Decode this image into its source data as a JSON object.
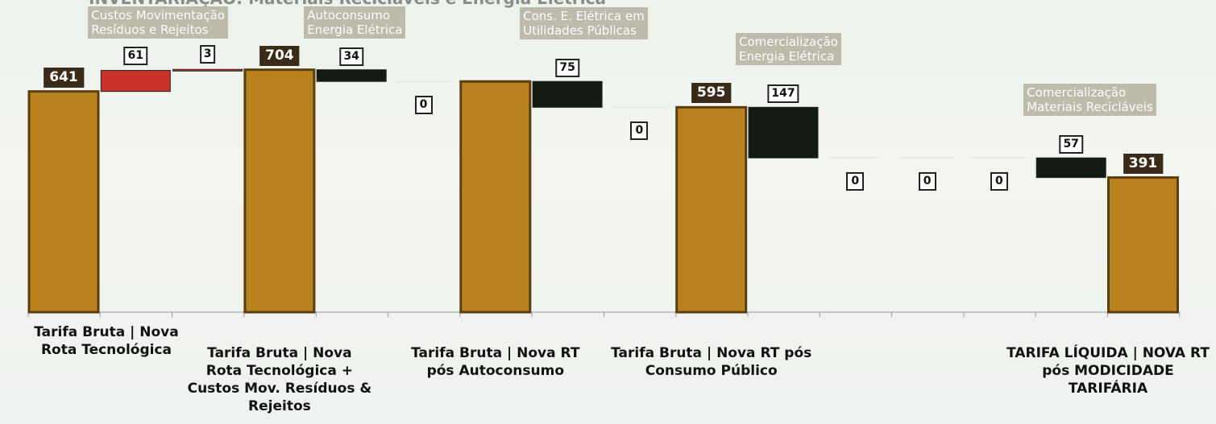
{
  "chart_data": {
    "type": "bar",
    "title": "INVENTARIAÇÃO: Materiais Recicláveis e Energia Elétrica",
    "ylim": [
      0,
      800
    ],
    "categories": [
      {
        "label": "Tarifa Bruta | Nova\nRota Tecnológica",
        "kind": "total",
        "value": 641,
        "display": "641"
      },
      {
        "label": "",
        "kind": "increase",
        "value": 61,
        "display": "61"
      },
      {
        "label": "",
        "kind": "increase",
        "value": 3,
        "display": "3"
      },
      {
        "label": "Tarifa Bruta | Nova\nRota Tecnológica +\nCustos Mov. Resíduos &\nRejeitos",
        "kind": "total",
        "value": 704,
        "display": "704"
      },
      {
        "label": "",
        "kind": "decrease",
        "value": 34,
        "display": "34"
      },
      {
        "label": "",
        "kind": "zero",
        "value": 0,
        "display": "0"
      },
      {
        "label": "Tarifa Bruta | Nova RT\npós Autoconsumo",
        "kind": "total",
        "value": 670,
        "display": ""
      },
      {
        "label": "",
        "kind": "decrease",
        "value": 75,
        "display": "75"
      },
      {
        "label": "",
        "kind": "zero",
        "value": 0,
        "display": "0"
      },
      {
        "label": "Tarifa Bruta | Nova RT pós\nConsumo Público",
        "kind": "total",
        "value": 595,
        "display": "595"
      },
      {
        "label": "",
        "kind": "decrease",
        "value": 147,
        "display": "147"
      },
      {
        "label": "",
        "kind": "zero",
        "value": 0,
        "display": "0"
      },
      {
        "label": "",
        "kind": "zero",
        "value": 0,
        "display": "0"
      },
      {
        "label": "",
        "kind": "zero",
        "value": 0,
        "display": "0"
      },
      {
        "label": "",
        "kind": "decrease",
        "value": 57,
        "display": "57"
      },
      {
        "label": "TARIFA LÍQUIDA | NOVA RT\npós MODICIDADE TARIFÁRIA",
        "kind": "total",
        "value": 391,
        "display": "391"
      }
    ],
    "annotations": [
      {
        "text": "Custos Movimentação\nResíduos e Rejeitos",
        "category_index": 1
      },
      {
        "text": "Autoconsumo\nEnergia Elétrica",
        "category_index": 4
      },
      {
        "text": "Cons. E. Elétrica em\nUtilidades Públicas",
        "category_index": 7
      },
      {
        "text": "Comercialização\nEnergia Elétrica",
        "category_index": 10
      },
      {
        "text": "Comercialização\nMateriais Recicláveis",
        "category_index": 14
      }
    ],
    "colors": {
      "total": "#b8821e",
      "increase": "#c8322a",
      "decrease": "#121a12",
      "zero": "#ffffff"
    }
  }
}
